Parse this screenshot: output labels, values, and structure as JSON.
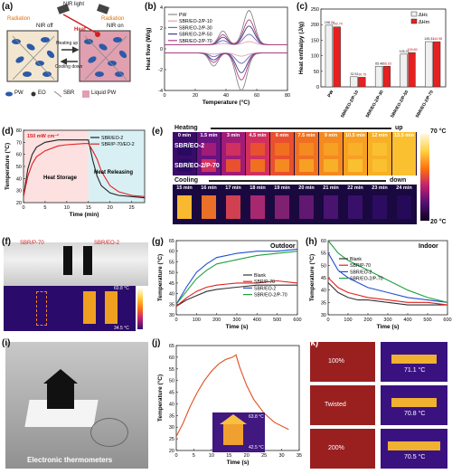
{
  "panel_labels": {
    "a": "(a)",
    "b": "(b)",
    "c": "(c)",
    "d": "(d)",
    "e": "(e)",
    "f": "(f)",
    "g": "(g)",
    "h": "(h)",
    "i": "(i)",
    "j": "(j)",
    "k": "(k)"
  },
  "panel_a": {
    "nir_light": "NIR light",
    "radiation_left": "Radiation",
    "radiation_right": "Radiation",
    "nir_off": "NIR off",
    "nir_on": "NIR on",
    "heat": "Heat",
    "heating_up": "Heating up",
    "cooling_down": "Cooling down",
    "legend_pw": "PW",
    "legend_eo": "EO",
    "legend_sbr": "SBR",
    "legend_liquid": "Liquid PW"
  },
  "chart_b": {
    "type": "line",
    "xlabel": "Temperature (°C)",
    "ylabel": "Heat flow (W/g)",
    "xlim": [
      0,
      80
    ],
    "ylim": [
      -4,
      4
    ],
    "xticks": [
      "0",
      "20",
      "40",
      "60",
      "80"
    ],
    "yticks": [
      "-4",
      "-2",
      "0",
      "2",
      "4"
    ],
    "series": [
      {
        "name": "PW",
        "color": "#888888",
        "peak_up": 3.3,
        "peak_down": -3.6
      },
      {
        "name": "SBR/EO-2/P-10",
        "color": "#e8a0a8",
        "peak_up": 0.3,
        "peak_down": -0.3
      },
      {
        "name": "SBR/EO-2/P-30",
        "color": "#6b6bb0",
        "peak_up": 1.0,
        "peak_down": -1.0
      },
      {
        "name": "SBR/EO-2/P-50",
        "color": "#3f3f8f",
        "peak_up": 1.8,
        "peak_down": -1.9
      },
      {
        "name": "SBR/EO-2/P-70",
        "color": "#b04080",
        "peak_up": 2.4,
        "peak_down": -2.6
      }
    ]
  },
  "chart_c": {
    "type": "bar",
    "ylabel": "Heat enthalpy (J/g)",
    "ylim": [
      0,
      250
    ],
    "yticks": [
      "0",
      "50",
      "100",
      "150",
      "200",
      "250"
    ],
    "categories": [
      "PW",
      "SBR/EO-2/P-10",
      "SBR/EO-2/P-30",
      "SBR/EO-2/P-50",
      "SBR/EO-2/P-70"
    ],
    "series": [
      {
        "name": "ΔHc",
        "color": "#f0f0f0",
        "values": [
          198.24,
          32.51,
          65.46,
          105.21,
          145.31
        ]
      },
      {
        "name": "ΔHm",
        "color": "#e62020",
        "values": [
          192.74,
          30.75,
          66.03,
          109.89,
          144.98
        ]
      }
    ],
    "value_labels": [
      [
        "198.24",
        "192.74"
      ],
      [
        "32.51",
        "30.75"
      ],
      [
        "65.46",
        "66.03"
      ],
      [
        "105.21",
        "109.89"
      ],
      [
        "145.31",
        "144.98"
      ]
    ]
  },
  "chart_d": {
    "type": "line",
    "xlabel": "Time (min)",
    "ylabel": "Temperature (°C)",
    "xlim": [
      0,
      28
    ],
    "ylim": [
      20,
      80
    ],
    "xticks": [
      "0",
      "5",
      "10",
      "15",
      "20",
      "25"
    ],
    "yticks": [
      "20",
      "30",
      "40",
      "50",
      "60",
      "70",
      "80"
    ],
    "power": "150 mW cm⁻²",
    "heat_storage": "Heat Storage",
    "heat_releasing": "Heat Releasing",
    "series": [
      {
        "name": "SBR/EO-2",
        "color": "#222222",
        "x": [
          0,
          1,
          2,
          3,
          5,
          8,
          10,
          14,
          15,
          16,
          17,
          18,
          20,
          22,
          25,
          28
        ],
        "y": [
          25,
          48,
          60,
          66,
          70,
          72,
          72,
          72,
          72,
          55,
          42,
          34,
          28,
          26,
          25,
          24
        ]
      },
      {
        "name": "SBR/P-70/EO-2",
        "color": "#e02020",
        "x": [
          0,
          1,
          2,
          3,
          5,
          8,
          10,
          14,
          15,
          16,
          17,
          18,
          20,
          22,
          25,
          28
        ],
        "y": [
          25,
          42,
          52,
          58,
          63,
          67,
          68,
          69,
          69,
          63,
          56,
          46,
          34,
          29,
          26,
          25
        ]
      }
    ]
  },
  "panel_e": {
    "heating": "Heating",
    "up": "up",
    "cooling": "Cooling",
    "down": "down",
    "sample1": "SBR/EO-2",
    "sample2": "SBR/EO-2/P-70",
    "heating_times": [
      "0 min",
      "1.5 min",
      "3 min",
      "4.5 min",
      "6 min",
      "7.5 min",
      "9 min",
      "10.5 min",
      "12 min",
      "13.5 min"
    ],
    "cooling_times": [
      "15 min",
      "16 min",
      "17 min",
      "18 min",
      "19 min",
      "20 min",
      "21 min",
      "22 min",
      "23 min",
      "24 min"
    ],
    "scale_max": "70 °C",
    "scale_min": "20 °C"
  },
  "panel_f": {
    "label_left": "SBR/P-70",
    "label_right": "SBR/EO-2",
    "scale_max": "60.8 °C",
    "scale_min": "34.5 °C"
  },
  "chart_g": {
    "type": "line",
    "title": "Outdoor",
    "xlabel": "Time (s)",
    "ylabel": "Temperature (°C)",
    "xlim": [
      0,
      600
    ],
    "ylim": [
      30,
      65
    ],
    "xticks": [
      "0",
      "100",
      "200",
      "300",
      "400",
      "500",
      "600"
    ],
    "yticks": [
      "30",
      "35",
      "40",
      "45",
      "50",
      "55",
      "60",
      "65"
    ],
    "series": [
      {
        "name": "Blank",
        "color": "#333333",
        "x": [
          0,
          50,
          100,
          150,
          200,
          300,
          400,
          500,
          600
        ],
        "y": [
          34,
          37,
          39,
          41,
          42,
          43,
          44,
          44,
          44
        ]
      },
      {
        "name": "SBR/P-70",
        "color": "#e02020",
        "x": [
          0,
          50,
          100,
          150,
          200,
          300,
          400,
          500,
          600
        ],
        "y": [
          34,
          38,
          41,
          43,
          44,
          45,
          45,
          46,
          45
        ]
      },
      {
        "name": "SBR/EO-2",
        "color": "#2050d0",
        "x": [
          0,
          50,
          100,
          150,
          200,
          300,
          400,
          500,
          600
        ],
        "y": [
          35,
          43,
          50,
          54,
          57,
          59,
          60,
          60,
          61
        ]
      },
      {
        "name": "SBR/EO-2/P-70",
        "color": "#20a040",
        "x": [
          0,
          50,
          100,
          150,
          200,
          300,
          400,
          500,
          600
        ],
        "y": [
          35,
          41,
          47,
          51,
          54,
          56,
          58,
          59,
          60
        ]
      }
    ]
  },
  "chart_h": {
    "type": "line",
    "title": "Indoor",
    "xlabel": "Time (s)",
    "ylabel": "Temperature (°C)",
    "xlim": [
      0,
      600
    ],
    "ylim": [
      30,
      60
    ],
    "xticks": [
      "0",
      "100",
      "200",
      "300",
      "400",
      "500",
      "600"
    ],
    "yticks": [
      "30",
      "35",
      "40",
      "45",
      "50",
      "55",
      "60"
    ],
    "series": [
      {
        "name": "Blank",
        "color": "#333333",
        "x": [
          0,
          50,
          100,
          150,
          200,
          300,
          400,
          500,
          600
        ],
        "y": [
          43,
          39,
          37,
          36,
          36,
          35,
          34,
          34,
          34
        ]
      },
      {
        "name": "SBR/P-70",
        "color": "#e02020",
        "x": [
          0,
          50,
          100,
          150,
          200,
          300,
          400,
          500,
          600
        ],
        "y": [
          45,
          41,
          39,
          38,
          37,
          36,
          35,
          35,
          34
        ]
      },
      {
        "name": "SBR/EO-2",
        "color": "#2050d0",
        "x": [
          0,
          50,
          100,
          150,
          200,
          300,
          400,
          500,
          600
        ],
        "y": [
          55,
          48,
          45,
          43,
          41,
          39,
          37,
          36,
          35
        ]
      },
      {
        "name": "SBR/EO-2/P-70",
        "color": "#20a040",
        "x": [
          0,
          50,
          100,
          150,
          200,
          300,
          400,
          500,
          600
        ],
        "y": [
          60,
          55,
          52,
          50,
          48,
          44,
          40,
          37,
          35
        ]
      }
    ]
  },
  "panel_i": {
    "caption": "Electronic thermometers"
  },
  "chart_j": {
    "type": "line",
    "xlabel": "Time (s)",
    "ylabel": "Temperature (°C)",
    "xlim": [
      0,
      35
    ],
    "ylim": [
      20,
      65
    ],
    "xticks": [
      "0",
      "5",
      "10",
      "15",
      "20",
      "25",
      "30",
      "35"
    ],
    "yticks": [
      "20",
      "25",
      "30",
      "35",
      "40",
      "45",
      "50",
      "55",
      "60",
      "65"
    ],
    "inset_max": "63.8 °C",
    "inset_min": "42.5 °C",
    "series": [
      {
        "name": "",
        "color": "#e05020",
        "x": [
          0,
          2,
          4,
          6,
          8,
          10,
          12,
          14,
          16,
          17,
          18,
          20,
          22,
          25,
          28,
          32
        ],
        "y": [
          26,
          32,
          39,
          45,
          50,
          54,
          57,
          59,
          60,
          61,
          56,
          48,
          42,
          36,
          32,
          29
        ]
      }
    ]
  },
  "panel_k": {
    "strain1": "100%",
    "strain2": "Twisted",
    "strain3": "200%",
    "temp1": "71.1 °C",
    "temp2": "70.8 °C",
    "temp3": "70.5 °C"
  }
}
